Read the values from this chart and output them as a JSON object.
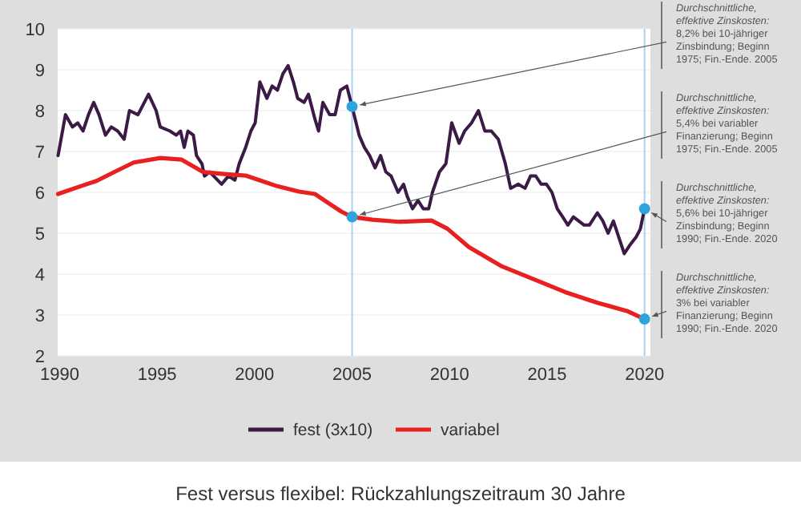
{
  "chart_data": {
    "type": "line",
    "title": "Fest versus flexibel: Rückzahlungszeitraum 30 Jahre",
    "xlim": [
      1989.9,
      2020.3
    ],
    "xticks": [
      1990,
      1995,
      2000,
      2005,
      2010,
      2015,
      2020
    ],
    "ylim": [
      2,
      10
    ],
    "yticks": [
      2,
      3,
      4,
      5,
      6,
      7,
      8,
      9,
      10
    ],
    "grid": "y",
    "legend": "bottom",
    "line_style": "solid",
    "series": [
      {
        "name": "fest (3x10)",
        "color": "#3b1a45",
        "x": [
          1989.92,
          1990.3,
          1990.66,
          1990.93,
          1991.2,
          1991.48,
          1991.75,
          1992.02,
          1992.35,
          1992.65,
          1992.98,
          1993.31,
          1993.58,
          1994.02,
          1994.56,
          1994.95,
          1995.16,
          1995.66,
          1995.98,
          1996.2,
          1996.39,
          1996.58,
          1996.86,
          1997.02,
          1997.3,
          1997.43,
          1997.7,
          1997.9,
          1998.31,
          1998.66,
          1998.99,
          1999.21,
          1999.54,
          1999.81,
          2000.03,
          2000.27,
          2000.63,
          2000.9,
          2001.17,
          2001.45,
          2001.72,
          2001.99,
          2002.21,
          2002.54,
          2002.76,
          2003.09,
          2003.28,
          2003.5,
          2003.85,
          2004.13,
          2004.4,
          2004.73,
          2005.0,
          2005.36,
          2005.63,
          2005.9,
          2006.18,
          2006.46,
          2006.73,
          2007.0,
          2007.36,
          2007.64,
          2007.83,
          2008.1,
          2008.38,
          2008.65,
          2008.93,
          2009.12,
          2009.48,
          2009.81,
          2010.11,
          2010.49,
          2010.77,
          2011.13,
          2011.48,
          2011.81,
          2012.14,
          2012.5,
          2012.86,
          2013.13,
          2013.52,
          2013.87,
          2014.15,
          2014.42,
          2014.7,
          2014.97,
          2015.25,
          2015.52,
          2015.8,
          2016.07,
          2016.35,
          2016.62,
          2016.9,
          2017.17,
          2017.58,
          2017.86,
          2018.13,
          2018.4,
          2018.68,
          2018.96,
          2019.23,
          2019.56,
          2019.78,
          2020.0
        ],
        "values": [
          6.9,
          7.9,
          7.6,
          7.7,
          7.5,
          7.9,
          8.2,
          7.9,
          7.4,
          7.6,
          7.5,
          7.3,
          8.0,
          7.9,
          8.4,
          8.0,
          7.6,
          7.5,
          7.4,
          7.5,
          7.1,
          7.5,
          7.4,
          6.9,
          6.7,
          6.4,
          6.5,
          6.4,
          6.2,
          6.4,
          6.3,
          6.7,
          7.1,
          7.5,
          7.7,
          8.7,
          8.3,
          8.6,
          8.5,
          8.9,
          9.1,
          8.7,
          8.3,
          8.2,
          8.4,
          7.8,
          7.5,
          8.2,
          7.9,
          7.9,
          8.5,
          8.6,
          8.1,
          7.4,
          7.1,
          6.9,
          6.6,
          6.9,
          6.5,
          6.4,
          6.0,
          6.2,
          5.9,
          5.6,
          5.8,
          5.6,
          5.6,
          6.0,
          6.5,
          6.7,
          7.7,
          7.2,
          7.5,
          7.7,
          8.0,
          7.5,
          7.5,
          7.3,
          6.7,
          6.1,
          6.2,
          6.1,
          6.4,
          6.4,
          6.2,
          6.2,
          6.0,
          5.6,
          5.4,
          5.2,
          5.4,
          5.3,
          5.2,
          5.2,
          5.5,
          5.3,
          5.0,
          5.3,
          4.9,
          4.5,
          4.7,
          4.9,
          5.1,
          5.6
        ]
      },
      {
        "name": "variabel",
        "color": "#e8201f",
        "x": [
          1989.92,
          1991.07,
          1991.89,
          1992.98,
          1993.8,
          1995.16,
          1996.26,
          1997.35,
          1998.44,
          1999.54,
          2000.36,
          2001.17,
          2002.27,
          2003.09,
          2003.91,
          2004.45,
          2005.0,
          2006.04,
          2007.42,
          2009.07,
          2009.89,
          2010.99,
          2012.64,
          2014.29,
          2015.93,
          2017.58,
          2019.09,
          2020.0
        ],
        "values": [
          5.96,
          6.15,
          6.28,
          6.54,
          6.73,
          6.84,
          6.8,
          6.5,
          6.45,
          6.41,
          6.28,
          6.15,
          6.02,
          5.96,
          5.7,
          5.53,
          5.4,
          5.33,
          5.28,
          5.31,
          5.11,
          4.66,
          4.2,
          3.88,
          3.56,
          3.3,
          3.1,
          2.9
        ]
      },
      {
        "type": "scatter",
        "marker": "circle",
        "color": "#2ea3dc",
        "x": [
          2005,
          2005,
          2020,
          2020
        ],
        "values": [
          8.1,
          5.4,
          5.6,
          2.9
        ]
      }
    ],
    "ref_lines": [
      {
        "axis": "x",
        "value": 2005,
        "color": "#a9d3ec"
      },
      {
        "axis": "x",
        "value": 2020,
        "color": "#a9d3ec"
      }
    ],
    "annotations": [
      "Durchschnittliche, effektive Zinskosten: 8,2% bei 10-jähriger Zinsbindung; Beginn 1975; Fin.-Ende. 2005",
      "Durchschnittliche, effektive Zinskosten: 5,4% bei variabler Finanzierung; Beginn 1975; Fin.-Ende. 2005",
      "Durchschnittliche, effektive Zinskosten: 5,6% bei 10-jähriger Zinsbindung; Beginn 1990; Fin.-Ende. 2020",
      "Durchschnittliche, effektive Zinskosten: 3% bei variabler Finanzierung; Beginn 1990; Fin.-Ende. 2020"
    ]
  }
}
